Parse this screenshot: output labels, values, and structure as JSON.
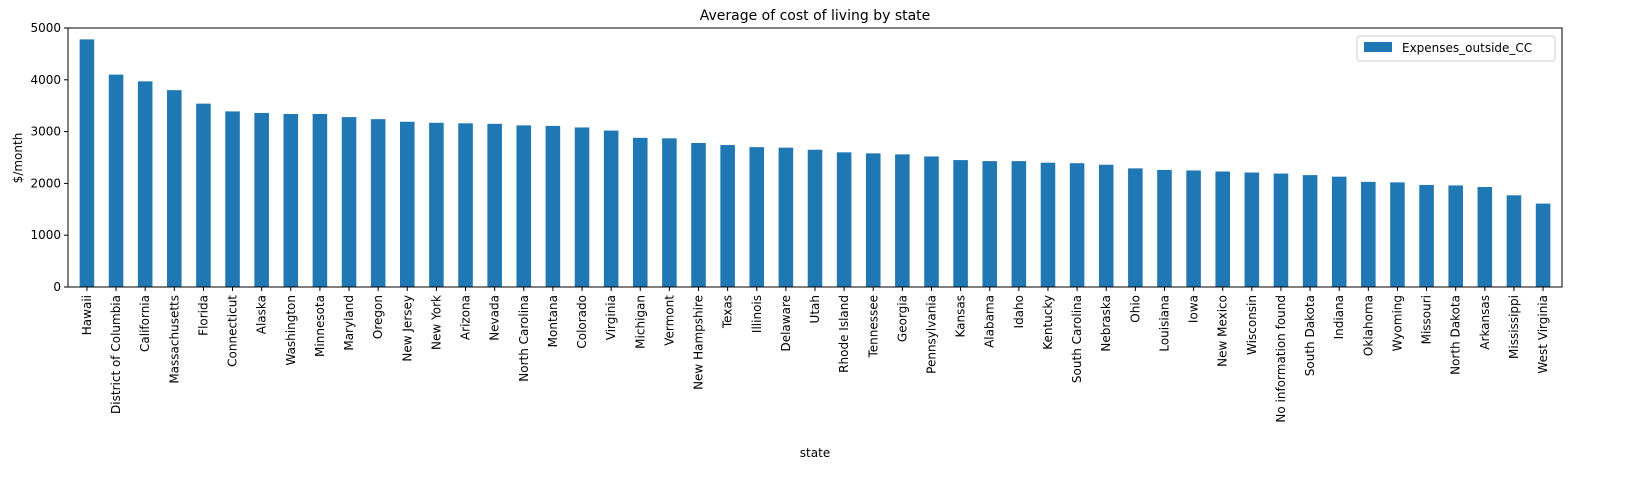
{
  "chart_data": {
    "type": "bar",
    "title": "Average of cost of living by state",
    "xlabel": "state",
    "ylabel": "$/month",
    "ylim": [
      0,
      5000
    ],
    "yticks": [
      0,
      1000,
      2000,
      3000,
      4000,
      5000
    ],
    "grid": false,
    "legend_position": "top-right",
    "colors": {
      "bar": "#1f77b4"
    },
    "categories": [
      "Hawaii",
      "District of Columbia",
      "California",
      "Massachusetts",
      "Florida",
      "Connecticut",
      "Alaska",
      "Washington",
      "Minnesota",
      "Maryland",
      "Oregon",
      "New Jersey",
      "New York",
      "Arizona",
      "Nevada",
      "North Carolina",
      "Montana",
      "Colorado",
      "Virginia",
      "Michigan",
      "Vermont",
      "New Hampshire",
      "Texas",
      "Illinois",
      "Delaware",
      "Utah",
      "Rhode Island",
      "Tennessee",
      "Georgia",
      "Pennsylvania",
      "Kansas",
      "Alabama",
      "Idaho",
      "Kentucky",
      "South Carolina",
      "Nebraska",
      "Ohio",
      "Louisiana",
      "Iowa",
      "New Mexico",
      "Wisconsin",
      "No information found",
      "South Dakota",
      "Indiana",
      "Oklahoma",
      "Wyoming",
      "Missouri",
      "North Dakota",
      "Arkansas",
      "Mississippi",
      "West Virginia"
    ],
    "series": [
      {
        "name": "Expenses_outside_CC",
        "values": [
          4780,
          4100,
          3970,
          3800,
          3540,
          3390,
          3360,
          3340,
          3340,
          3280,
          3240,
          3190,
          3170,
          3160,
          3150,
          3120,
          3110,
          3080,
          3020,
          2880,
          2870,
          2780,
          2740,
          2700,
          2690,
          2650,
          2600,
          2580,
          2560,
          2520,
          2450,
          2430,
          2430,
          2400,
          2390,
          2360,
          2290,
          2260,
          2250,
          2230,
          2210,
          2190,
          2160,
          2130,
          2030,
          2020,
          1970,
          1960,
          1930,
          1770,
          1610
        ]
      }
    ]
  }
}
